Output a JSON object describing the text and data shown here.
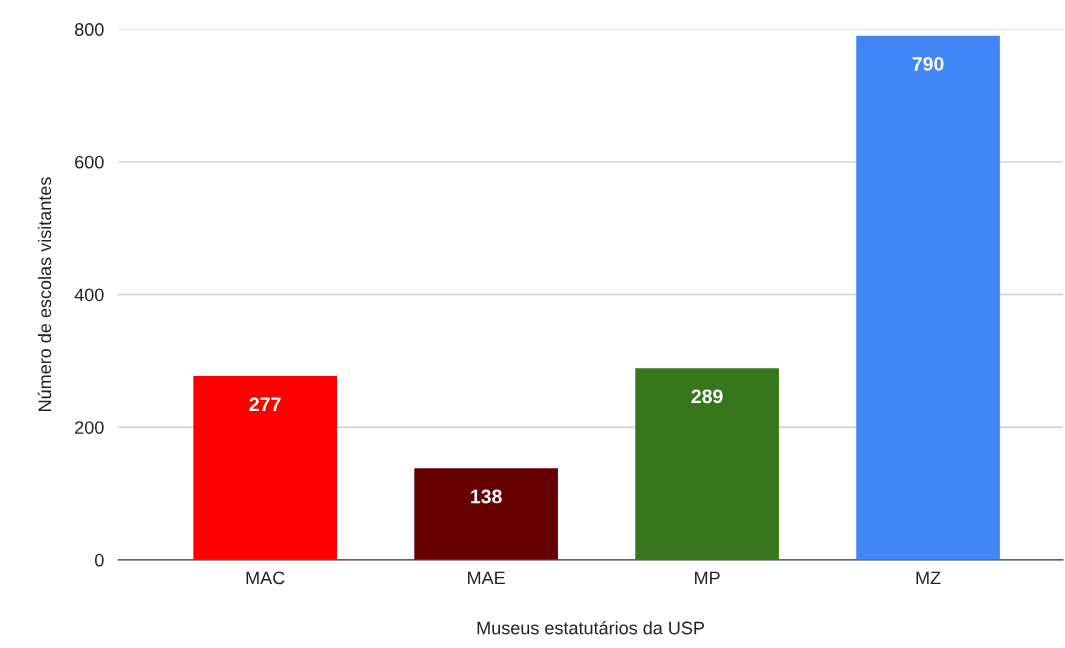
{
  "chart_data": {
    "type": "bar",
    "xlabel": "Museus estatutários da USP",
    "ylabel": "Número de escolas visitantes",
    "categories": [
      "MAC",
      "MAE",
      "MP",
      "MZ"
    ],
    "values": [
      277,
      138,
      289,
      790
    ],
    "colors": [
      "#ff0000",
      "#660000",
      "#38761d",
      "#4285f4"
    ],
    "ylim": [
      0,
      800
    ],
    "yticks": [
      0,
      200,
      400,
      600,
      800
    ],
    "grid": "y",
    "data_labels": true
  }
}
